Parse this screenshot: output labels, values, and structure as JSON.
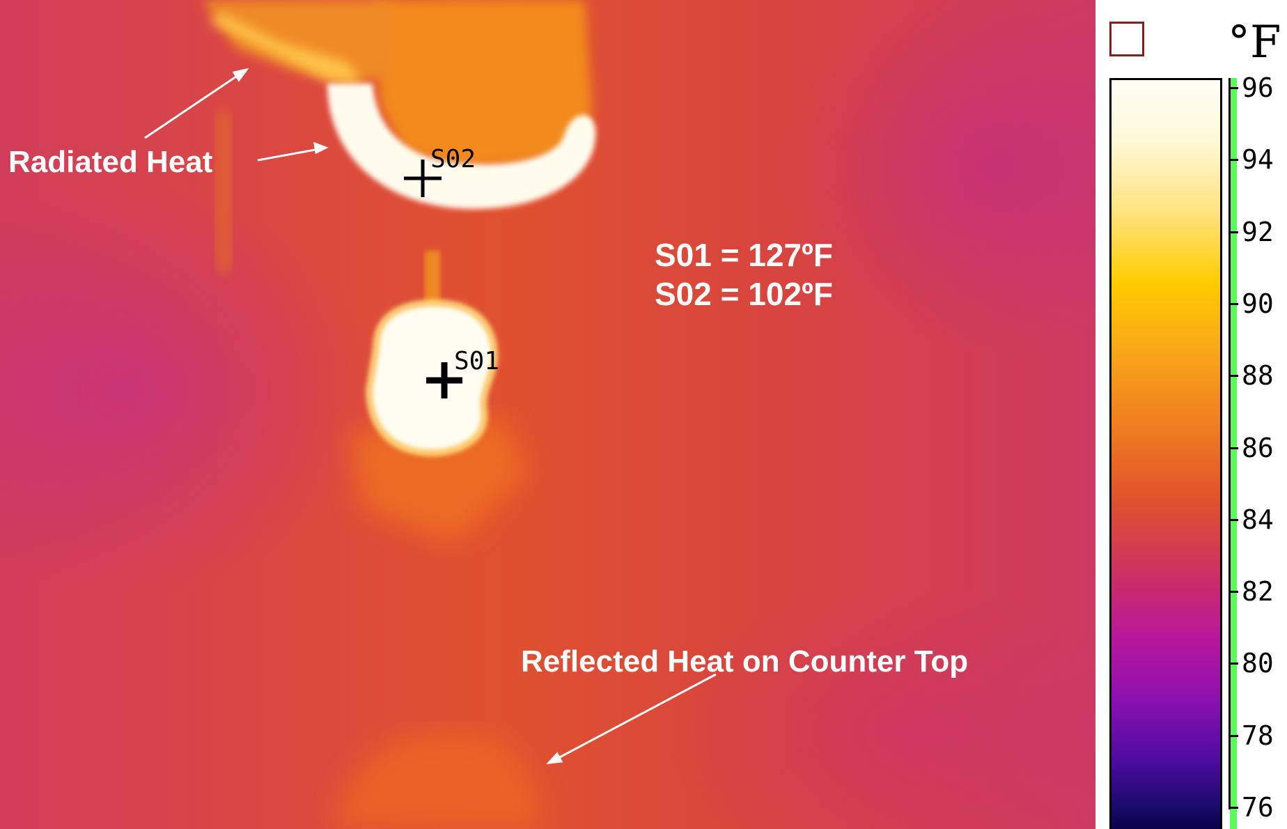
{
  "annotations": {
    "radiated_heat": "Radiated Heat",
    "reflected_heat": "Reflected Heat on Counter Top",
    "s01_reading": "S01 = 127ºF",
    "s02_reading": "S02 = 102ºF"
  },
  "spots": {
    "s01": "S01",
    "s02": "S02"
  },
  "scale": {
    "unit": "°F",
    "ticks": [
      "96",
      "94",
      "92",
      "90",
      "88",
      "86",
      "84",
      "82",
      "80",
      "78",
      "76"
    ]
  }
}
